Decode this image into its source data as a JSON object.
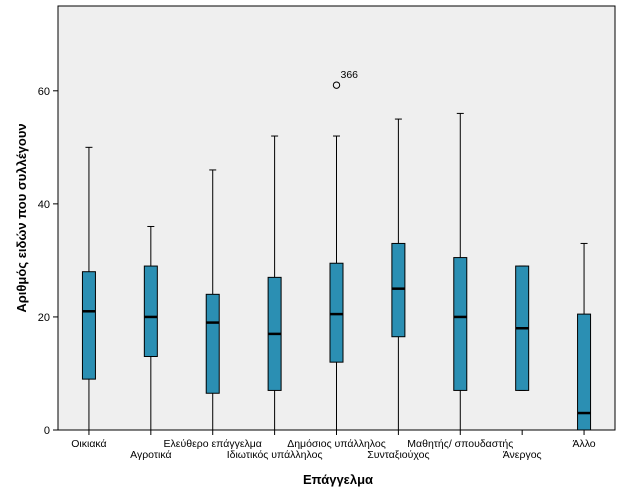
{
  "chart_data": {
    "type": "boxplot",
    "xlabel": "Επάγγελμα",
    "ylabel": "Αριθμός ειδών που συλλέγουν",
    "ylim": [
      0,
      75
    ],
    "yticks": [
      0,
      20,
      40,
      60
    ],
    "grid": false,
    "colors": {
      "plot_background": "#efefef",
      "box_fill": "#2b8fb3",
      "box_stroke": "#000000",
      "axis": "#000000"
    },
    "categories": [
      {
        "label": "Οικιακά",
        "row": "upper",
        "min": 0,
        "q1": 9,
        "median": 21,
        "q3": 28,
        "max": 50
      },
      {
        "label": "Αγροτικά",
        "row": "lower",
        "min": 0,
        "q1": 13,
        "median": 20,
        "q3": 29,
        "max": 36
      },
      {
        "label": "Ελεύθερο επάγγελμα",
        "row": "upper",
        "min": 0,
        "q1": 6.5,
        "median": 19,
        "q3": 24,
        "max": 46
      },
      {
        "label": "Ιδιωτικός υπάλληλος",
        "row": "lower",
        "min": 0,
        "q1": 7,
        "median": 17,
        "q3": 27,
        "max": 52
      },
      {
        "label": "Δημόσιος υπάλληλος",
        "row": "upper",
        "min": 0,
        "q1": 12,
        "median": 20.5,
        "q3": 29.5,
        "max": 52,
        "outliers": [
          {
            "value": 61,
            "label": "366"
          }
        ]
      },
      {
        "label": "Συνταξιούχος",
        "row": "lower",
        "min": 0,
        "q1": 16.5,
        "median": 25,
        "q3": 33,
        "max": 55
      },
      {
        "label": "Μαθητής/ σπουδαστής",
        "row": "upper",
        "min": 0,
        "q1": 7,
        "median": 20,
        "q3": 30.5,
        "max": 56
      },
      {
        "label": "Άνεργος",
        "row": "lower",
        "min": 7,
        "q1": 7,
        "median": 18,
        "q3": 29,
        "max": 29
      },
      {
        "label": "Άλλο",
        "row": "upper",
        "min": 0,
        "q1": 0,
        "median": 3,
        "q3": 20.5,
        "max": 33
      }
    ]
  }
}
